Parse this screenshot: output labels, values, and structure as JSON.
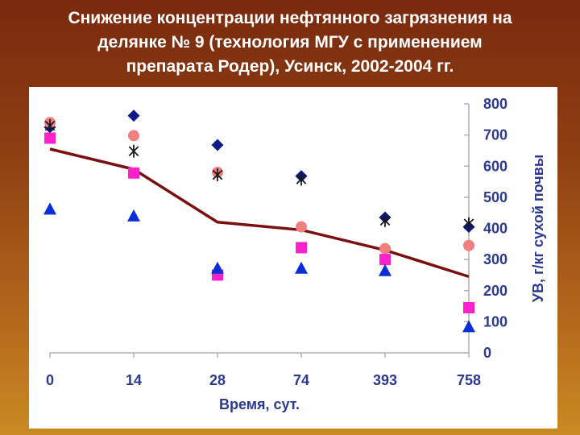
{
  "slide": {
    "title_lines": [
      "Снижение концентрации нефтянного загрязнения на",
      "делянке № 9 (технология МГУ с применением",
      "препарата Родер), Усинск, 2002-2004 гг."
    ]
  },
  "chart_data": {
    "type": "scatter",
    "categories": [
      "0",
      "14",
      "28",
      "74",
      "393",
      "758"
    ],
    "xlabel": "Время, сут.",
    "ylabel": "УВ, г/кг сухой почвы",
    "ylim": [
      0,
      800
    ],
    "yticks": [
      0,
      100,
      200,
      300,
      400,
      500,
      600,
      700,
      800
    ],
    "y_axis_side": "right",
    "legend": "none",
    "grid": false,
    "series": [
      {
        "marker": "diamond",
        "color": "#0d1a8a",
        "values": [
          725,
          762,
          668,
          568,
          435,
          405
        ]
      },
      {
        "marker": "circle",
        "color": "#f08080",
        "values": [
          740,
          698,
          580,
          405,
          335,
          345
        ]
      },
      {
        "marker": "asterisk",
        "color": "#1a1a1a",
        "values": [
          730,
          648,
          572,
          558,
          425,
          415
        ]
      },
      {
        "marker": "square",
        "color": "#ff22cc",
        "values": [
          690,
          578,
          250,
          338,
          300,
          145
        ]
      },
      {
        "marker": "triangle",
        "color": "#0b2fd6",
        "values": [
          460,
          438,
          270,
          270,
          262,
          82
        ]
      },
      {
        "marker": "line",
        "color": "#7a0f0f",
        "values": [
          655,
          590,
          420,
          395,
          330,
          245
        ]
      }
    ]
  }
}
